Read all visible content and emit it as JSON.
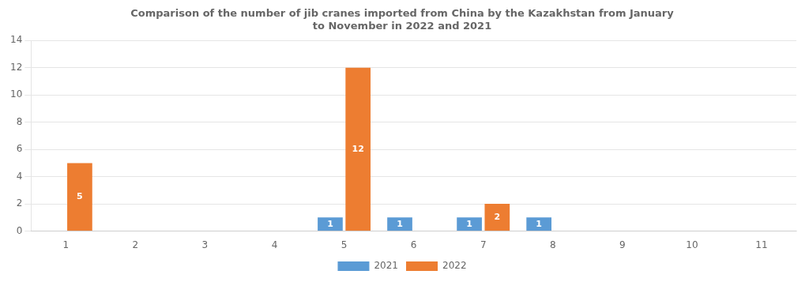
{
  "chart_data": {
    "type": "bar",
    "title": "Comparison of the number of jib cranes imported from China by the Kazakhstan from January\nto November in 2022 and 2021",
    "categories": [
      1,
      2,
      3,
      4,
      5,
      6,
      7,
      8,
      9,
      10,
      11
    ],
    "series": [
      {
        "name": "2021",
        "color": "#5B9BD5",
        "values": [
          0,
          0,
          0,
          0,
          1,
          1,
          1,
          1,
          0,
          0,
          0
        ]
      },
      {
        "name": "2022",
        "color": "#ED7D31",
        "values": [
          5,
          0,
          0,
          0,
          12,
          0,
          2,
          0,
          0,
          0,
          0
        ]
      }
    ],
    "ylim": [
      0,
      14
    ],
    "yticks": [
      0,
      2,
      4,
      6,
      8,
      10,
      12,
      14
    ],
    "grid": true,
    "legend": "bottom",
    "data_labels": true
  }
}
